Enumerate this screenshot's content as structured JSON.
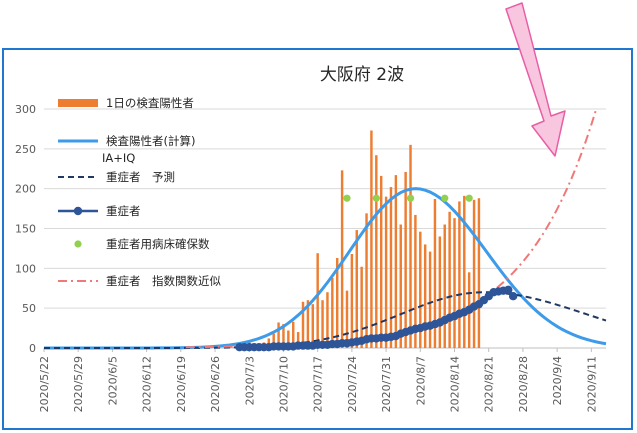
{
  "chart_data": {
    "type": "bar",
    "title": "大阪府 2波",
    "xlabel": "",
    "ylabel": "",
    "ylim": [
      0,
      300
    ],
    "yticks": [
      0,
      50,
      100,
      150,
      200,
      250,
      300
    ],
    "x_tick_labels": [
      "2020/5/22",
      "2020/5/29",
      "2020/6/5",
      "2020/6/12",
      "2020/6/19",
      "2020/6/26",
      "2020/7/3",
      "2020/7/10",
      "2020/7/17",
      "2020/7/24",
      "2020/7/31",
      "2020/8/7",
      "2020/8/14",
      "2020/8/21",
      "2020/8/28",
      "2020/9/4",
      "2020/9/11"
    ],
    "grid": "horizontal",
    "legend_position": "top-left",
    "legend": [
      {
        "label": "1日の検査陽性者",
        "style": "bar",
        "color": "#ed7d31"
      },
      {
        "label": "検査陽性者(計算)",
        "style": "line",
        "color": "#3d9be9"
      },
      {
        "label": "IA+IQ",
        "style": "note"
      },
      {
        "label": "重症者　予測",
        "style": "dashed",
        "color": "#203864"
      },
      {
        "label": "重症者",
        "style": "line-marker",
        "color": "#2e5597"
      },
      {
        "label": "重症者用病床確保数",
        "style": "marker",
        "color": "#92d050"
      },
      {
        "label": "重症者　指数関数近似",
        "style": "dashdot",
        "color": "#f07878"
      }
    ],
    "series": [
      {
        "name": "1日の検査陽性者",
        "type": "bar",
        "x_start": "2020/6/28",
        "values": [
          2,
          3,
          2,
          5,
          6,
          10,
          3,
          5,
          7,
          12,
          18,
          32,
          30,
          22,
          33,
          20,
          58,
          60,
          55,
          119,
          60,
          70,
          88,
          113,
          223,
          72,
          118,
          148,
          102,
          169,
          273,
          242,
          216,
          190,
          202,
          217,
          155,
          221,
          255,
          167,
          146,
          130,
          121,
          187,
          140,
          155,
          171,
          163,
          184,
          191,
          95,
          186,
          188
        ]
      },
      {
        "name": "検査陽性者(計算)",
        "type": "line",
        "x_start": "2020/5/22",
        "x_end": "2020/9/14",
        "peak_date": "2020/8/6",
        "peak_value": 200,
        "end_value": 7
      },
      {
        "name": "重症者　予測",
        "type": "dashed",
        "x_start": "2020/5/22",
        "x_end": "2020/9/14",
        "peak_date": "2020/8/20",
        "peak_value": 70,
        "end_value": 23
      },
      {
        "name": "重症者",
        "type": "line-marker",
        "x_start": "2020/7/1",
        "values": [
          1,
          1,
          1,
          1,
          1,
          1,
          1,
          2,
          2,
          2,
          2,
          2,
          3,
          3,
          3,
          3,
          4,
          4,
          4,
          5,
          5,
          6,
          6,
          7,
          8,
          9,
          11,
          12,
          12,
          13,
          13,
          14,
          15,
          18,
          20,
          22,
          24,
          25,
          27,
          28,
          30,
          32,
          35,
          38,
          40,
          43,
          45,
          48,
          52,
          55,
          60,
          65,
          70,
          71,
          72,
          73,
          65
        ]
      },
      {
        "name": "重症者用病床確保数",
        "type": "marker",
        "points": [
          [
            "2020/7/23",
            188
          ],
          [
            "2020/7/29",
            188
          ],
          [
            "2020/8/5",
            188
          ],
          [
            "2020/8/12",
            188
          ],
          [
            "2020/8/17",
            188
          ]
        ]
      },
      {
        "name": "重症者　指数関数近似",
        "type": "dashdot",
        "x_start": "2020/6/20",
        "x_end": "2020/9/12",
        "start_value": 1,
        "end_value": 300
      }
    ],
    "colors": {
      "bars": "#ed7d31",
      "calc_line": "#3d9be9",
      "forecast": "#203864",
      "severe": "#2e5597",
      "beds": "#92d050",
      "exp_fit": "#f07878",
      "arrow_fill": "#f9c6e0",
      "arrow_stroke": "#e75ea5",
      "frame": "#1f77d0",
      "grid": "#d9d9d9"
    }
  }
}
